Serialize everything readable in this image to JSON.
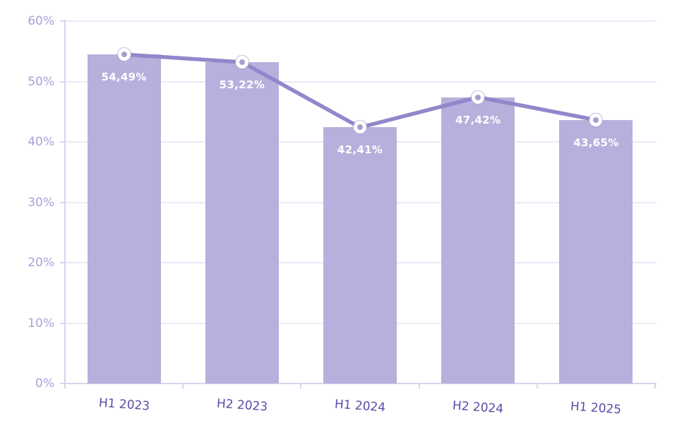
{
  "chart_data": {
    "type": "bar",
    "title": "",
    "xlabel": "",
    "ylabel": "",
    "categories": [
      "H1 2023",
      "H2 2023",
      "H1 2024",
      "H2 2024",
      "H1 2025"
    ],
    "series": [
      {
        "name": "value-bars",
        "type": "bar",
        "values": [
          54.49,
          53.22,
          42.41,
          47.42,
          43.65
        ]
      },
      {
        "name": "value-line",
        "type": "line",
        "values": [
          54.49,
          53.22,
          42.41,
          47.42,
          43.65
        ]
      }
    ],
    "data_labels": [
      "54,49%",
      "53,22%",
      "42,41%",
      "47,42%",
      "43,65%"
    ],
    "y_ticks": [
      {
        "value": 0,
        "label": "0%"
      },
      {
        "value": 10,
        "label": "10%"
      },
      {
        "value": 20,
        "label": "20%"
      },
      {
        "value": 30,
        "label": "30%"
      },
      {
        "value": 40,
        "label": "40%"
      },
      {
        "value": 50,
        "label": "50%"
      },
      {
        "value": 60,
        "label": "60%"
      }
    ],
    "ylim": [
      0,
      60
    ],
    "grid": true,
    "legend_position": "none",
    "colors": {
      "background": "#FFFFFF",
      "bar_fill": "#B8AFDC",
      "line_stroke": "#9187CA",
      "marker_fill": "#A79DCE",
      "marker_ring": "#FFFFFF",
      "gridline": "#ECE9F7",
      "axis_line": "#D9D4EE",
      "y_tick_label": "#A9A0DA",
      "x_tick_label": "#584DA8",
      "data_label_text": "#FFFFFF"
    }
  }
}
